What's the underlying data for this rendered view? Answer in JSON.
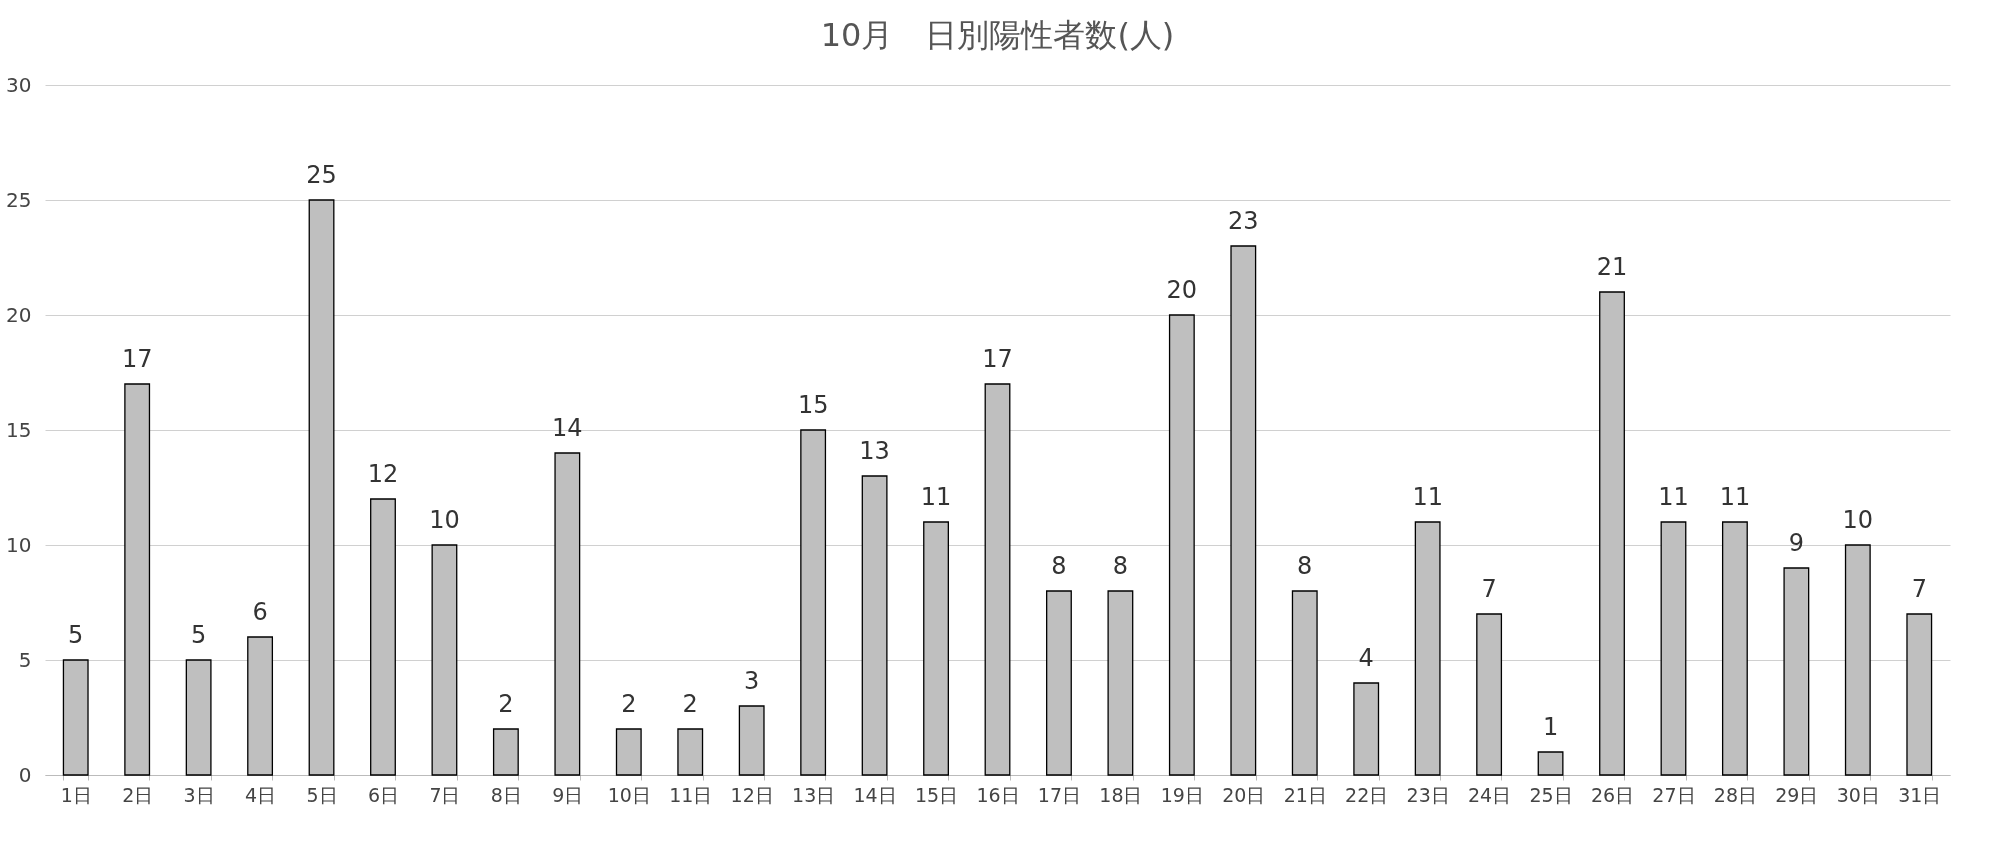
{
  "chart_data": {
    "type": "bar",
    "title": "10月　日別陽性者数(人)",
    "categories": [
      "1日",
      "2日",
      "3日",
      "4日",
      "5日",
      "6日",
      "7日",
      "8日",
      "9日",
      "10日",
      "11日",
      "12日",
      "13日",
      "14日",
      "15日",
      "16日",
      "17日",
      "18日",
      "19日",
      "20日",
      "21日",
      "22日",
      "23日",
      "24日",
      "25日",
      "26日",
      "27日",
      "28日",
      "29日",
      "30日",
      "31日"
    ],
    "values": [
      5,
      17,
      5,
      6,
      25,
      12,
      10,
      2,
      14,
      2,
      2,
      3,
      15,
      13,
      11,
      17,
      8,
      8,
      20,
      23,
      8,
      4,
      11,
      7,
      1,
      21,
      11,
      11,
      9,
      10,
      7
    ],
    "color": "#bfbfbf",
    "ylim": [
      0,
      30
    ],
    "yticks": [
      0,
      5,
      10,
      15,
      20,
      25,
      30
    ],
    "grid": "y",
    "data_labels": true
  }
}
